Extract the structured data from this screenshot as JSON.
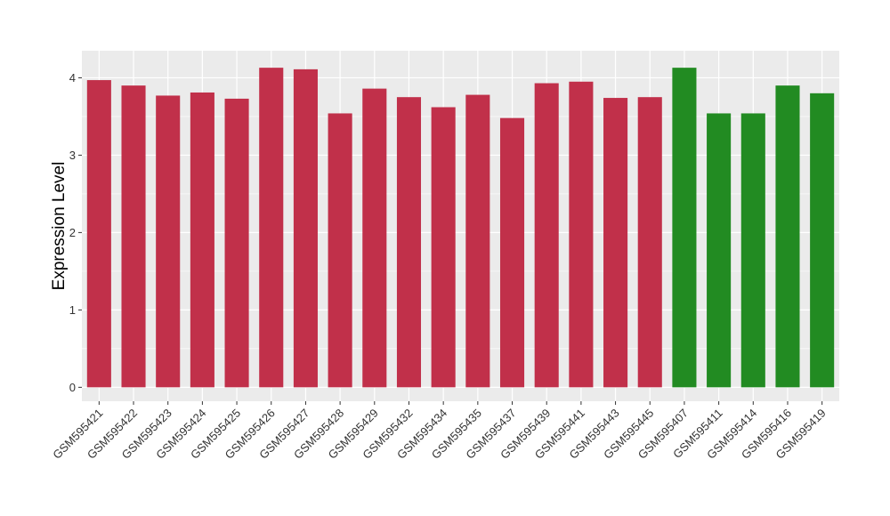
{
  "chart_data": {
    "type": "bar",
    "title": "",
    "xlabel": "",
    "ylabel": "Expression Level",
    "ylim": [
      -0.18,
      4.35
    ],
    "yticks": [
      0,
      1,
      2,
      3,
      4
    ],
    "grid": true,
    "categories": [
      "GSM595421",
      "GSM595422",
      "GSM595423",
      "GSM595424",
      "GSM595425",
      "GSM595426",
      "GSM595427",
      "GSM595428",
      "GSM595429",
      "GSM595432",
      "GSM595434",
      "GSM595435",
      "GSM595437",
      "GSM595439",
      "GSM595441",
      "GSM595443",
      "GSM595445",
      "GSM595407",
      "GSM595411",
      "GSM595414",
      "GSM595416",
      "GSM595419"
    ],
    "values": [
      3.97,
      3.9,
      3.77,
      3.81,
      3.73,
      4.13,
      4.11,
      3.54,
      3.86,
      3.75,
      3.62,
      3.78,
      3.48,
      3.93,
      3.95,
      3.74,
      3.75,
      4.13,
      3.54,
      3.54,
      3.9,
      3.8
    ],
    "groups": [
      "red",
      "red",
      "red",
      "red",
      "red",
      "red",
      "red",
      "red",
      "red",
      "red",
      "red",
      "red",
      "red",
      "red",
      "red",
      "red",
      "red",
      "green",
      "green",
      "green",
      "green",
      "green"
    ],
    "colors": {
      "red": "#c1304a",
      "green": "#228b22",
      "panel": "#ebebeb",
      "gridline": "#ffffff"
    }
  }
}
